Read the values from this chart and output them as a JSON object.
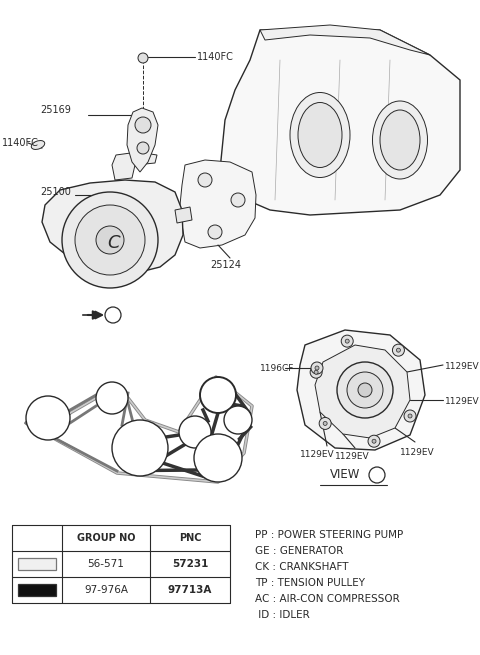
{
  "bg_color": "#ffffff",
  "line_color": "#2a2a2a",
  "legend_items": [
    "PP : POWER STEERING PUMP",
    "GE : GENERATOR",
    "CK : CRANKSHAFT",
    "TP : TENSION PULLEY",
    "AC : AIR-CON COMPRESSOR",
    " ID : IDLER"
  ],
  "table_rows": [
    {
      "belt_color": "#f0f0f0",
      "group": "56-571",
      "pnc": "57231"
    },
    {
      "belt_color": "#111111",
      "group": "97-976A",
      "pnc": "97713A"
    }
  ]
}
